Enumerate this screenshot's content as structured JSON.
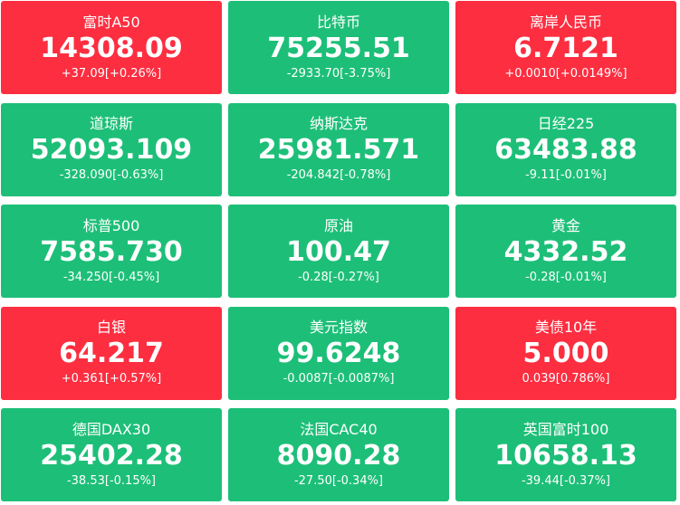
{
  "tiles": [
    {
      "name": "富时A50",
      "price": "14308.09",
      "change": "+37.09[+0.26%]",
      "color": "#fc2e40"
    },
    {
      "name": "比特币",
      "price": "75255.51",
      "change": "-2933.70[-3.75%]",
      "color": "#1dbf78"
    },
    {
      "name": "离岸人民币",
      "price": "6.7121",
      "change": "+0.0010[+0.0149%]",
      "color": "#fc2e40"
    },
    {
      "name": "道琼斯",
      "price": "52093.109",
      "change": "-328.090[-0.63%]",
      "color": "#1dbf78"
    },
    {
      "name": "纳斯达克",
      "price": "25981.571",
      "change": "-204.842[-0.78%]",
      "color": "#1dbf78"
    },
    {
      "name": "日经225",
      "price": "63483.88",
      "change": "-9.11[-0.01%]",
      "color": "#1dbf78"
    },
    {
      "name": "标普500",
      "price": "7585.730",
      "change": "-34.250[-0.45%]",
      "color": "#1dbf78"
    },
    {
      "name": "原油",
      "price": "100.47",
      "change": "-0.28[-0.27%]",
      "color": "#1dbf78"
    },
    {
      "name": "黄金",
      "price": "4332.52",
      "change": "-0.28[-0.01%]",
      "color": "#1dbf78"
    },
    {
      "name": "白银",
      "price": "64.217",
      "change": "+0.361[+0.57%]",
      "color": "#fc2e40"
    },
    {
      "name": "美元指数",
      "price": "99.6248",
      "change": "-0.0087[-0.0087%]",
      "color": "#1dbf78"
    },
    {
      "name": "美债10年",
      "price": "5.000",
      "change": "0.039[0.786%]",
      "color": "#fc2e40"
    },
    {
      "name": "德国DAX30",
      "price": "25402.28",
      "change": "-38.53[-0.15%]",
      "color": "#1dbf78"
    },
    {
      "name": "法国CAC40",
      "price": "8090.28",
      "change": "-27.50[-0.34%]",
      "color": "#1dbf78"
    },
    {
      "name": "英国富时100",
      "price": "10658.13",
      "change": "-39.44[-0.37%]",
      "color": "#1dbf78"
    }
  ]
}
